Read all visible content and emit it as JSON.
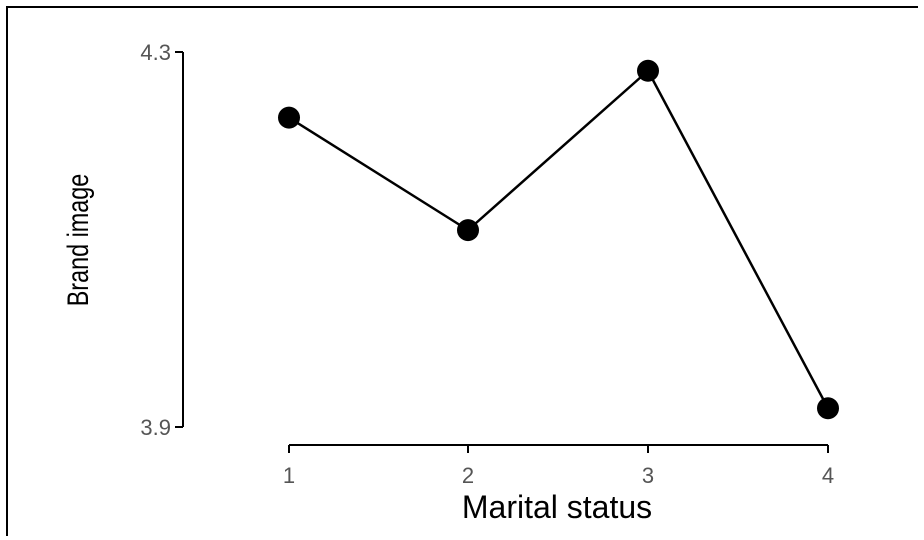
{
  "chart_data": {
    "type": "line",
    "title": "",
    "xlabel": "Marital status",
    "ylabel": "Brand image",
    "categories": [
      "1",
      "2",
      "3",
      "4"
    ],
    "series": [
      {
        "values": [
          4.23,
          4.11,
          4.28,
          3.92
        ]
      }
    ],
    "yticks": [
      "4.3",
      "3.9"
    ],
    "ylim": [
      3.9,
      4.3
    ],
    "grid": false,
    "legend": "none",
    "colors": {
      "line": "#000000",
      "marker": "#000000",
      "axis": "#000000",
      "tick_label": "#555555"
    }
  }
}
